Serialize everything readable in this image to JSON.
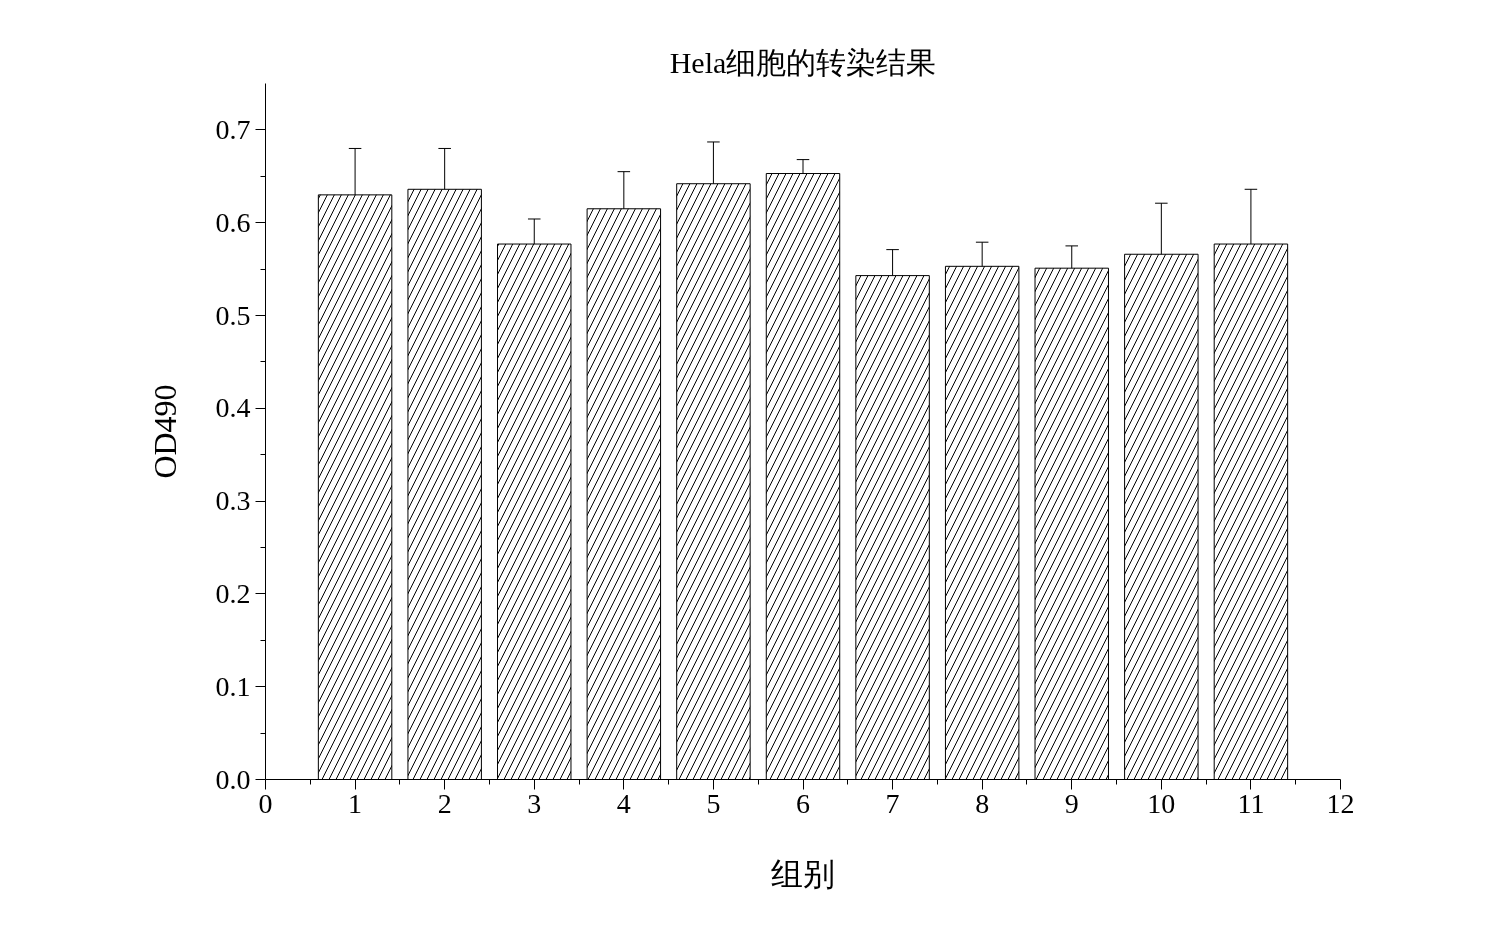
{
  "chart_data": {
    "type": "bar",
    "title": "Hela细胞的转染结果",
    "xlabel": "组别",
    "ylabel": "OD490",
    "x": [
      1,
      2,
      3,
      4,
      5,
      6,
      7,
      8,
      9,
      10,
      11
    ],
    "values": [
      0.63,
      0.636,
      0.577,
      0.615,
      0.642,
      0.653,
      0.543,
      0.553,
      0.551,
      0.566,
      0.577
    ],
    "errors": [
      [
        0.63,
        0.68
      ],
      [
        0.636,
        0.68
      ],
      [
        0.577,
        0.604
      ],
      [
        0.615,
        0.655
      ],
      [
        0.642,
        0.687
      ],
      [
        0.653,
        0.668
      ],
      [
        0.543,
        0.571
      ],
      [
        0.553,
        0.579
      ],
      [
        0.551,
        0.575
      ],
      [
        0.566,
        0.621
      ],
      [
        0.577,
        0.636
      ]
    ],
    "color": "#ffffff",
    "xlim": [
      0,
      12
    ],
    "xticks": [
      0,
      1,
      2,
      3,
      4,
      5,
      6,
      7,
      8,
      9,
      10,
      11,
      12
    ],
    "ylim": [
      0,
      0.75
    ],
    "yticks": [
      {
        "value": 0,
        "label": "0.0"
      },
      0.1,
      0.2,
      0.3,
      0.4,
      0.5,
      0.6,
      0.7
    ],
    "grid": false
  }
}
